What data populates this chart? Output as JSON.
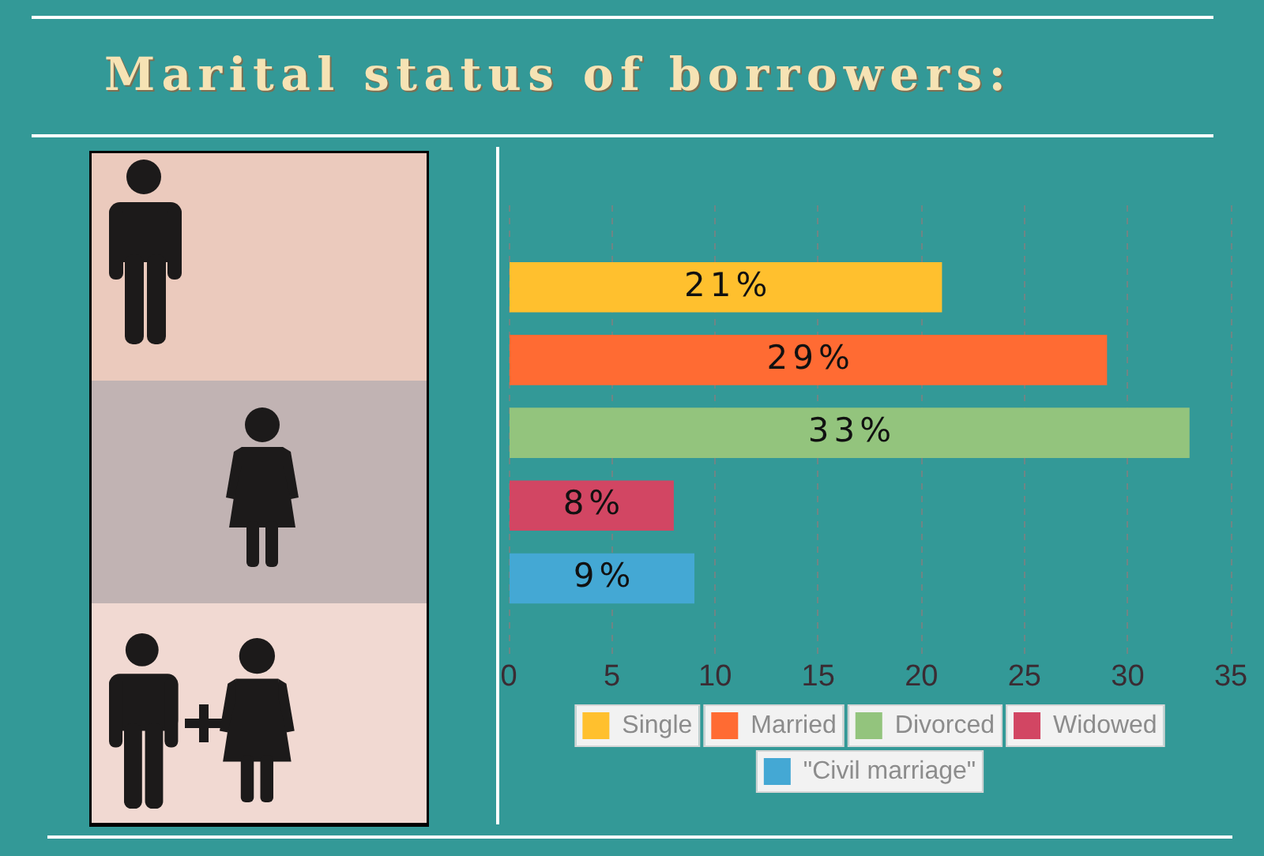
{
  "chart_data": {
    "type": "bar",
    "orientation": "horizontal",
    "title": "Marital status of borrowers:",
    "categories": [
      null
    ],
    "series": [
      {
        "name": "Single",
        "color": "#ffc02e",
        "values": [
          21
        ],
        "value_labels": [
          "21%"
        ]
      },
      {
        "name": "Married",
        "color": "#ff6b33",
        "values": [
          29
        ],
        "value_labels": [
          "29%"
        ]
      },
      {
        "name": "Divorced",
        "color": "#93c47d",
        "values": [
          33
        ],
        "value_labels": [
          "33%"
        ]
      },
      {
        "name": "Widowed",
        "color": "#d24663",
        "values": [
          8
        ],
        "value_labels": [
          "8%"
        ]
      },
      {
        "name": "\"Civil marriage\"",
        "color": "#44a8d4",
        "values": [
          9
        ],
        "value_labels": [
          "9%"
        ]
      }
    ],
    "xlim": [
      0,
      35
    ],
    "xticks": [
      0,
      5,
      10,
      15,
      20,
      25,
      30,
      35
    ],
    "grid": "x",
    "legend": "bottom"
  }
}
